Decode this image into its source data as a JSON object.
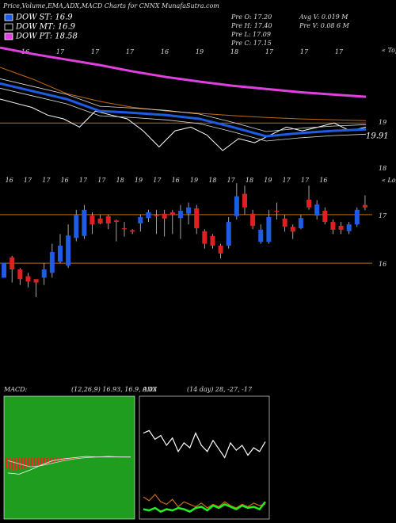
{
  "title": "Price,Volume,EMA,ADX,MACD Charts for CNNX MunafaSutra.com",
  "legend": [
    {
      "name": "DOW ST: 16.9",
      "color": "#1e5ce6"
    },
    {
      "name": "DOW MT: 16.9",
      "color": "#000000"
    },
    {
      "name": "DOW PT: 18.58",
      "color": "#e040e0"
    }
  ],
  "info": [
    "Pre O: 17.20",
    "Pre H: 17.40",
    "Pre L: 17.09",
    "Pre C: 17.15",
    "Avg V: 0.019 M",
    "Pre V: 0.08   6 M"
  ],
  "chart_data": [
    {
      "type": "line",
      "ylim": [
        17.9,
        20.9
      ],
      "yticks": [
        18,
        19
      ],
      "annotations": [
        "« Tops",
        "19.91"
      ],
      "x_labels": [
        "16",
        "17",
        "17",
        "17",
        "16",
        "19",
        "18",
        "17",
        "17",
        "17"
      ],
      "series": [
        {
          "name": "price",
          "color": "#ffffff",
          "values": [
            19.52,
            19.43,
            19.34,
            19.17,
            19.09,
            18.91,
            19.26,
            19.17,
            19.09,
            18.83,
            18.48,
            18.83,
            18.91,
            18.74,
            18.4,
            18.66,
            18.57,
            18.74,
            18.91,
            18.83,
            18.91,
            19.0,
            18.83,
            18.91
          ]
        },
        {
          "name": "ema-long",
          "color": "#c06a10",
          "values": [
            20.21,
            19.95,
            19.64,
            19.47,
            19.34,
            19.26,
            19.21,
            19.16,
            19.12,
            19.09,
            19.07,
            19.05
          ]
        },
        {
          "name": "ema-short",
          "color": "#1e5ce6",
          "values": [
            19.86,
            19.69,
            19.52,
            19.26,
            19.22,
            19.17,
            19.09,
            18.91,
            18.71,
            18.78,
            18.83,
            18.86
          ]
        },
        {
          "name": "ema-pt",
          "color": "#e040e0",
          "values": [
            20.64,
            20.5,
            20.38,
            20.26,
            20.12,
            20.0,
            19.9,
            19.81,
            19.74,
            19.67,
            19.62,
            19.57
          ]
        }
      ]
    },
    {
      "type": "candlestick",
      "ylim": [
        15.2,
        17.8
      ],
      "yticks": [
        16,
        17
      ],
      "annotations": [
        "« Lows"
      ],
      "x_labels": [
        "16",
        "17",
        "17",
        "16",
        "17",
        "17",
        "18",
        "19",
        "17",
        "16",
        "19",
        "18",
        "17",
        "18",
        "19",
        "17",
        "17",
        "16"
      ],
      "up_color": "#1e5ce6",
      "down_color": "#e02020",
      "open": [
        15.7,
        16.12,
        15.87,
        15.73,
        15.67,
        15.7,
        15.8,
        16.03,
        15.95,
        16.52,
        16.56,
        16.98,
        16.92,
        16.97,
        16.88,
        16.72,
        16.68,
        16.82,
        16.93,
        16.99,
        17.02,
        17.05,
        16.93,
        17.02,
        17.13,
        16.66,
        16.56,
        16.36,
        16.36,
        16.97,
        17.43,
        17.02,
        16.44,
        16.44,
        17.08,
        16.92,
        16.75,
        16.72,
        17.31,
        16.98,
        17.08,
        16.85,
        16.77,
        16.66,
        16.8,
        17.2
      ],
      "high": [
        16.0,
        16.15,
        15.9,
        15.8,
        15.65,
        16.0,
        16.4,
        16.6,
        16.8,
        17.1,
        17.2,
        17.05,
        17.0,
        17.0,
        16.9,
        16.85,
        16.7,
        17.0,
        17.1,
        17.1,
        17.1,
        17.1,
        17.2,
        17.25,
        17.2,
        16.7,
        16.6,
        16.4,
        16.95,
        17.65,
        17.6,
        17.1,
        16.8,
        17.1,
        17.25,
        17.0,
        16.8,
        17.0,
        17.6,
        17.3,
        17.15,
        16.9,
        16.85,
        16.85,
        17.15,
        17.4
      ],
      "low": [
        15.7,
        15.6,
        15.55,
        15.5,
        15.3,
        15.55,
        15.7,
        16.0,
        15.9,
        16.45,
        16.5,
        16.6,
        16.8,
        16.7,
        16.45,
        16.55,
        16.6,
        16.65,
        16.85,
        16.6,
        16.55,
        16.6,
        16.5,
        16.8,
        16.6,
        16.3,
        16.3,
        16.1,
        16.3,
        16.9,
        17.0,
        16.7,
        16.4,
        16.4,
        16.9,
        16.65,
        16.5,
        16.7,
        17.1,
        16.9,
        16.8,
        16.6,
        16.6,
        16.6,
        16.75,
        17.09
      ],
      "close": [
        16.0,
        15.87,
        15.67,
        15.62,
        15.6,
        15.87,
        16.23,
        16.36,
        16.57,
        17.0,
        17.1,
        16.8,
        16.82,
        16.82,
        16.85,
        16.7,
        16.65,
        16.95,
        17.05,
        16.97,
        16.92,
        17.0,
        17.08,
        17.15,
        16.72,
        16.4,
        16.36,
        16.2,
        16.85,
        17.38,
        17.15,
        16.77,
        16.69,
        16.95,
        17.06,
        16.75,
        16.65,
        16.93,
        17.15,
        17.21,
        16.85,
        16.69,
        16.69,
        16.8,
        17.1,
        17.15
      ]
    },
    {
      "type": "macd",
      "title": "MACD:",
      "params": "(12,26,9) 16.93, 16.9, 0.03",
      "ylim": [
        -1,
        1
      ],
      "bg": "#1f9d1f",
      "bar_color": "#ff2020",
      "histogram": [
        -0.18,
        -0.19,
        -0.2,
        -0.2,
        -0.19,
        -0.18,
        -0.17,
        -0.16,
        -0.15,
        -0.14,
        -0.13,
        -0.12,
        -0.11,
        -0.1,
        -0.09,
        -0.08,
        -0.07,
        -0.06,
        -0.05,
        -0.04,
        -0.03,
        -0.02,
        -0.02,
        -0.01
      ],
      "series": [
        {
          "name": "macd",
          "color": "#ffffff",
          "values": [
            -0.25,
            -0.27,
            -0.2,
            -0.12,
            -0.05,
            -0.02,
            0.0,
            0.02,
            0.01,
            0.02,
            0.01,
            0.01
          ]
        },
        {
          "name": "signal",
          "color": "#dddddd",
          "values": [
            -0.05,
            -0.1,
            -0.15,
            -0.13,
            -0.09,
            -0.05,
            -0.02,
            0.0,
            0.01,
            0.01,
            0.01,
            0.01
          ]
        }
      ]
    },
    {
      "type": "adx",
      "title": "ADX",
      "params": "(14 day) 28, -27, -17",
      "ylim": [
        0,
        100
      ],
      "series": [
        {
          "name": "adx",
          "color": "#ffffff",
          "values": [
            70,
            72,
            65,
            68,
            60,
            66,
            55,
            62,
            58,
            70,
            60,
            55,
            64,
            57,
            50,
            62,
            56,
            60,
            52,
            58,
            55,
            63
          ]
        },
        {
          "name": "plus-di",
          "color": "#d06a10",
          "values": [
            18,
            15,
            20,
            14,
            12,
            16,
            10,
            14,
            12,
            10,
            13,
            9,
            12,
            10,
            14,
            11,
            9,
            12,
            10,
            13,
            11,
            12
          ]
        },
        {
          "name": "minus-di",
          "color": "#22ee22",
          "values": [
            8,
            7,
            9,
            6,
            8,
            7,
            9,
            8,
            6,
            9,
            10,
            7,
            11,
            9,
            12,
            10,
            8,
            11,
            9,
            10,
            8,
            14
          ]
        }
      ]
    }
  ]
}
